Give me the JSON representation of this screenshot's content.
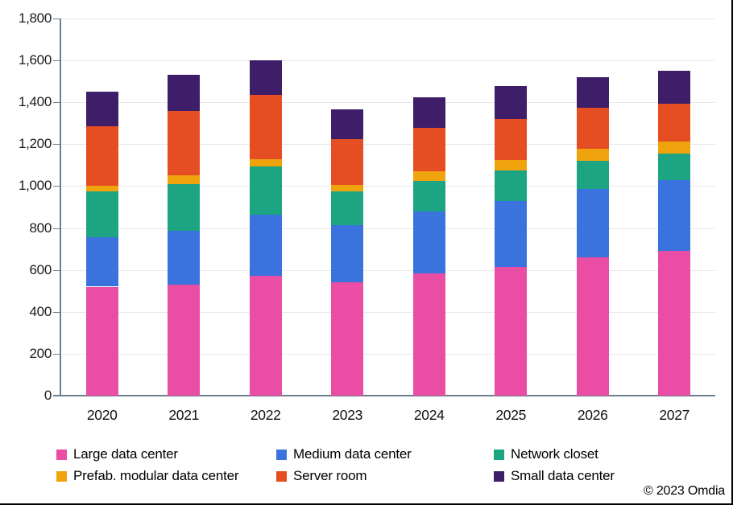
{
  "chart_data": {
    "type": "bar",
    "stacked": true,
    "title": "",
    "xlabel": "",
    "ylabel": "",
    "categories": [
      "2020",
      "2021",
      "2022",
      "2023",
      "2024",
      "2025",
      "2026",
      "2027"
    ],
    "series": [
      {
        "name": "Large data center",
        "color": "#E94DA4",
        "values": [
          520,
          530,
          570,
          540,
          585,
          615,
          660,
          690
        ]
      },
      {
        "name": "Medium data center",
        "color": "#3B73DE",
        "values": [
          235,
          255,
          295,
          275,
          295,
          315,
          325,
          340
        ]
      },
      {
        "name": "Network closet",
        "color": "#1DA483",
        "values": [
          220,
          225,
          230,
          160,
          145,
          145,
          135,
          125
        ]
      },
      {
        "name": "Prefab. modular data center",
        "color": "#EFA40D",
        "values": [
          25,
          40,
          35,
          32,
          45,
          48,
          60,
          57
        ]
      },
      {
        "name": "Server room",
        "color": "#E54D23",
        "values": [
          285,
          310,
          305,
          218,
          207,
          198,
          195,
          183
        ]
      },
      {
        "name": "Small data center",
        "color": "#3F1E69",
        "values": [
          165,
          170,
          165,
          140,
          145,
          155,
          145,
          155
        ]
      }
    ],
    "totals": [
      1450,
      1530,
      1600,
      1365,
      1422,
      1476,
      1520,
      1550
    ],
    "ylim": [
      0,
      1800
    ],
    "ytick_step": 200,
    "ytick_labels": [
      "0",
      "200",
      "400",
      "600",
      "800",
      "1,000",
      "1,200",
      "1,400",
      "1,600",
      "1,800"
    ],
    "grid": true,
    "legend_position": "bottom",
    "colors": {
      "gridline": "#E8E8E8",
      "axis": "#6F7E8C",
      "background": "#FFFFFF"
    }
  },
  "footer": {
    "copyright": "© 2023 Omdia"
  }
}
